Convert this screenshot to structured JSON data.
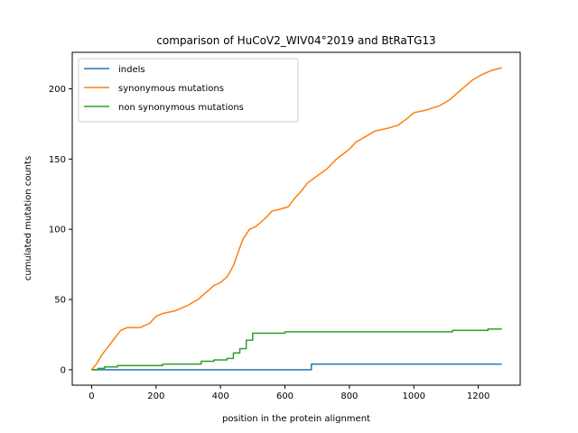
{
  "chart_data": {
    "type": "line",
    "title": "comparison of HuCoV2_WIV04°2019 and BtRaTG13",
    "xlabel": "position in the protein alignment",
    "ylabel": "cumulated mutation counts",
    "xlim": [
      -60,
      1330
    ],
    "ylim": [
      -11,
      226
    ],
    "xticks": [
      0,
      200,
      400,
      600,
      800,
      1000,
      1200
    ],
    "yticks": [
      0,
      50,
      100,
      150,
      200
    ],
    "grid": false,
    "legend_position": "top-left",
    "series": [
      {
        "name": "indels",
        "color": "#1f77b4",
        "step": true,
        "x": [
          0,
          680,
          682,
          1273
        ],
        "y": [
          0,
          0,
          4,
          4
        ]
      },
      {
        "name": "synonymous mutations",
        "color": "#ff7f0e",
        "step": false,
        "x": [
          0,
          15,
          30,
          50,
          70,
          90,
          110,
          150,
          180,
          200,
          220,
          260,
          300,
          330,
          360,
          380,
          400,
          420,
          440,
          460,
          470,
          490,
          510,
          540,
          560,
          580,
          610,
          630,
          650,
          670,
          700,
          730,
          760,
          800,
          820,
          850,
          880,
          920,
          950,
          980,
          1000,
          1040,
          1080,
          1110,
          1140,
          1180,
          1210,
          1240,
          1273
        ],
        "y": [
          0,
          4,
          10,
          16,
          22,
          28,
          30,
          30,
          33,
          38,
          40,
          42,
          46,
          50,
          56,
          60,
          62,
          66,
          74,
          87,
          93,
          100,
          102,
          108,
          113,
          114,
          116,
          122,
          127,
          133,
          138,
          143,
          150,
          157,
          162,
          166,
          170,
          172,
          174,
          179,
          183,
          185,
          188,
          192,
          198,
          206,
          210,
          213,
          215
        ]
      },
      {
        "name": "non synonymous mutations",
        "color": "#2ca02c",
        "step": true,
        "x": [
          0,
          20,
          40,
          60,
          80,
          100,
          220,
          250,
          300,
          340,
          380,
          420,
          440,
          460,
          480,
          500,
          600,
          700,
          800,
          1000,
          1120,
          1230,
          1273
        ],
        "y": [
          0,
          1,
          2,
          2,
          3,
          3,
          4,
          4,
          4,
          6,
          7,
          8,
          12,
          15,
          21,
          26,
          27,
          27,
          27,
          27,
          28,
          29,
          29
        ]
      }
    ]
  }
}
